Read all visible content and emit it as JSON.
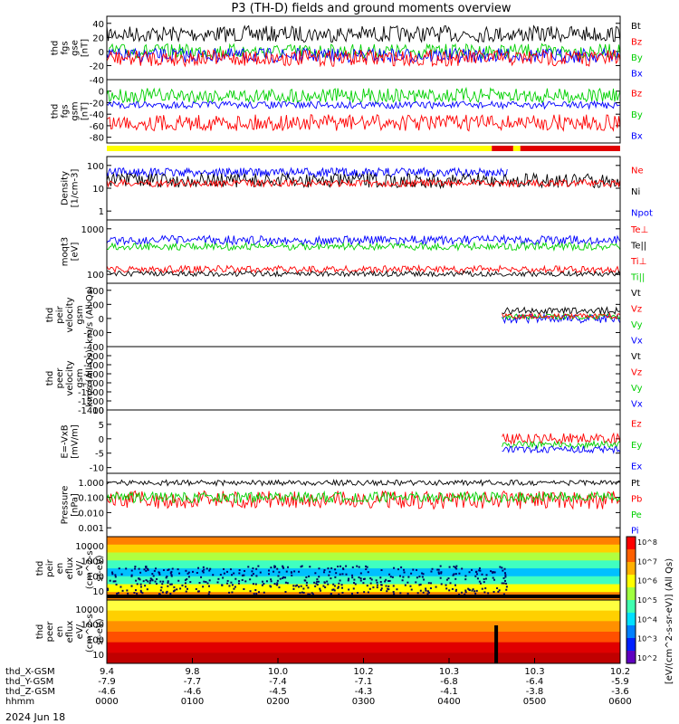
{
  "chart_data": {
    "type": "line",
    "title": "P3 (TH-D) fields and ground moments overview",
    "date_label": "2024 Jun 18",
    "panels": [
      {
        "id": "fgs",
        "ylabel_lines": [
          "thd",
          "fgs",
          "gse",
          "[nT]"
        ],
        "ylim": [
          -40,
          50
        ],
        "yticks": [
          -40,
          -20,
          0,
          20,
          40
        ],
        "legend": [
          {
            "name": "Bt",
            "color": "#000000"
          },
          {
            "name": "Bz",
            "color": "#ff0000"
          },
          {
            "name": "By",
            "color": "#00d000"
          },
          {
            "name": "Bx",
            "color": "#0000ff"
          }
        ]
      },
      {
        "id": "fgs_gsm",
        "ylabel_lines": [
          "thd",
          "fgs",
          "gsm",
          "[nT]"
        ],
        "ylim": [
          -90,
          20
        ],
        "yticks": [
          -80,
          -60,
          -40,
          -20,
          0
        ],
        "legend": [
          {
            "name": "Bz",
            "color": "#ff0000"
          },
          {
            "name": "By",
            "color": "#00d000"
          },
          {
            "name": "Bx",
            "color": "#0000ff"
          }
        ]
      },
      {
        "id": "density",
        "ylabel_lines": [
          "Density",
          "[1/cm-3]"
        ],
        "scale": "log",
        "yticks": [
          "1",
          "10",
          "100"
        ],
        "legend": [
          {
            "name": "Ne",
            "color": "#ff0000"
          },
          {
            "name": "Ni",
            "color": "#000000"
          },
          {
            "name": "Npot",
            "color": "#0000ff"
          }
        ]
      },
      {
        "id": "temp",
        "ylabel_lines": [
          "moqt3",
          "[eV]"
        ],
        "scale": "log",
        "yticks": [
          "100",
          "1000"
        ],
        "legend": [
          {
            "name": "Te⊥",
            "color": "#ff0000"
          },
          {
            "name": "Te||",
            "color": "#000000"
          },
          {
            "name": "Ti⊥",
            "color": "#ff0000"
          },
          {
            "name": "Ti||",
            "color": "#00d000"
          }
        ]
      },
      {
        "id": "vi",
        "ylabel_lines": [
          "thd",
          "peir",
          "velocity",
          "gsm",
          "km/s (All Qs)"
        ],
        "ylim": [
          -400,
          500
        ],
        "yticks": [
          -400,
          -200,
          0,
          200,
          400
        ],
        "legend": [
          {
            "name": "Vt",
            "color": "#000000"
          },
          {
            "name": "Vz",
            "color": "#ff0000"
          },
          {
            "name": "Vy",
            "color": "#00d000"
          },
          {
            "name": "Vx",
            "color": "#0000ff"
          }
        ]
      },
      {
        "id": "ve",
        "ylabel_lines": [
          "thd",
          "peer",
          "velocity",
          "gsm",
          "km/s (All Qs)"
        ],
        "ylim": [
          -1400,
          0
        ],
        "yticks": [
          -1400,
          -1200,
          -1000,
          -800,
          -600,
          -400,
          -200
        ],
        "legend": [
          {
            "name": "Vt",
            "color": "#000000"
          },
          {
            "name": "Vz",
            "color": "#ff0000"
          },
          {
            "name": "Vy",
            "color": "#00d000"
          },
          {
            "name": "Vx",
            "color": "#0000ff"
          }
        ]
      },
      {
        "id": "efield",
        "ylabel_lines": [
          "E=-VxB",
          "[mV/m]"
        ],
        "ylim": [
          -12,
          10
        ],
        "yticks": [
          -10,
          -5,
          0,
          5,
          10
        ],
        "legend": [
          {
            "name": "Ez",
            "color": "#ff0000"
          },
          {
            "name": "Ey",
            "color": "#00d000"
          },
          {
            "name": "Ex",
            "color": "#0000ff"
          }
        ]
      },
      {
        "id": "pressure",
        "ylabel_lines": [
          "Pressure",
          "[nPa]"
        ],
        "scale": "log",
        "yticks": [
          "0.001",
          "0.010",
          "0.100",
          "1.000"
        ],
        "legend": [
          {
            "name": "Pt",
            "color": "#000000"
          },
          {
            "name": "Pb",
            "color": "#ff0000"
          },
          {
            "name": "Pe",
            "color": "#00d000"
          },
          {
            "name": "Pi",
            "color": "#0000ff"
          }
        ]
      },
      {
        "id": "peir_spec",
        "ylabel_lines": [
          "thd",
          "peir",
          "en",
          "eflux",
          "eV/",
          "(cm^2-s-",
          "sr-eV)"
        ],
        "scale": "log",
        "yticks": [
          "10",
          "100",
          "1000",
          "10000"
        ]
      },
      {
        "id": "peer_spec",
        "ylabel_lines": [
          "thd",
          "peer",
          "en",
          "eflux",
          "eV/",
          "(cm^2-s-",
          "sr-eV)"
        ],
        "scale": "log",
        "yticks": [
          "10",
          "100",
          "1000",
          "10000"
        ]
      }
    ],
    "colorbar": {
      "label": "[eV/(cm^2-s-sr-eV)] (All Qs)",
      "ticks": [
        "10^2",
        "10^3",
        "10^4",
        "10^5",
        "10^6",
        "10^7",
        "10^8"
      ]
    },
    "mode_bar": {
      "segments": [
        {
          "start": "0000",
          "end": "0430",
          "color": "#ffff00"
        },
        {
          "start": "0430",
          "end": "0445",
          "color": "#e00000"
        },
        {
          "start": "0445",
          "end": "0450",
          "color": "#ffff00"
        },
        {
          "start": "0450",
          "end": "0600",
          "color": "#e00000"
        }
      ]
    },
    "x_axis": {
      "rows": [
        {
          "label": "thd_X-GSM",
          "values": [
            "9.4",
            "9.8",
            "10.0",
            "10.2",
            "10.3",
            "10.3",
            "10.2"
          ]
        },
        {
          "label": "thd_Y-GSM",
          "values": [
            "-7.9",
            "-7.7",
            "-7.4",
            "-7.1",
            "-6.8",
            "-6.4",
            "-5.9"
          ]
        },
        {
          "label": "thd_Z-GSM",
          "values": [
            "-4.6",
            "-4.6",
            "-4.5",
            "-4.3",
            "-4.1",
            "-3.8",
            "-3.6"
          ]
        },
        {
          "label": "hhmm",
          "values": [
            "0000",
            "0100",
            "0200",
            "0300",
            "0400",
            "0500",
            "0600"
          ]
        }
      ]
    }
  }
}
